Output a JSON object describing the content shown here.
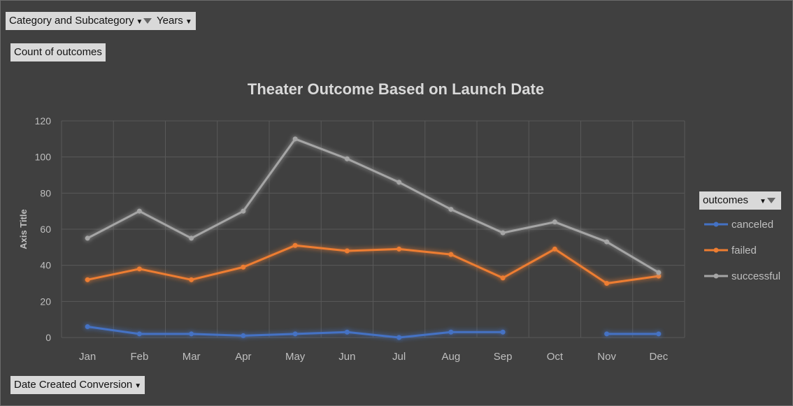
{
  "filters": {
    "category_label": "Category and Subcategory",
    "years_label": "Years",
    "values_label": "Count of outcomes",
    "axis_field_label": "Date Created Conversion",
    "legend_field_label": "outcomes"
  },
  "colors": {
    "background": "#404040",
    "grid": "#595959",
    "text": "#bfbfbf",
    "title": "#d9d9d9",
    "canceled": "#4472c4",
    "failed": "#ed7d31",
    "successful": "#a5a5a5"
  },
  "chart_data": {
    "type": "line",
    "title": "Theater Outcome Based on Launch Date",
    "xlabel": "",
    "ylabel": "Axis Title",
    "ylim": [
      0,
      120
    ],
    "yticks": [
      0,
      20,
      40,
      60,
      80,
      100,
      120
    ],
    "grid": true,
    "legend_position": "right",
    "categories": [
      "Jan",
      "Feb",
      "Mar",
      "Apr",
      "May",
      "Jun",
      "Jul",
      "Aug",
      "Sep",
      "Oct",
      "Nov",
      "Dec"
    ],
    "series": [
      {
        "name": "canceled",
        "color": "#4472c4",
        "values": [
          6,
          2,
          2,
          1,
          2,
          3,
          0,
          3,
          3,
          null,
          2,
          2
        ]
      },
      {
        "name": "failed",
        "color": "#ed7d31",
        "values": [
          32,
          38,
          32,
          39,
          51,
          48,
          49,
          46,
          33,
          49,
          30,
          34
        ]
      },
      {
        "name": "successful",
        "color": "#a5a5a5",
        "values": [
          55,
          70,
          55,
          70,
          110,
          99,
          86,
          71,
          58,
          64,
          53,
          36
        ]
      }
    ]
  }
}
